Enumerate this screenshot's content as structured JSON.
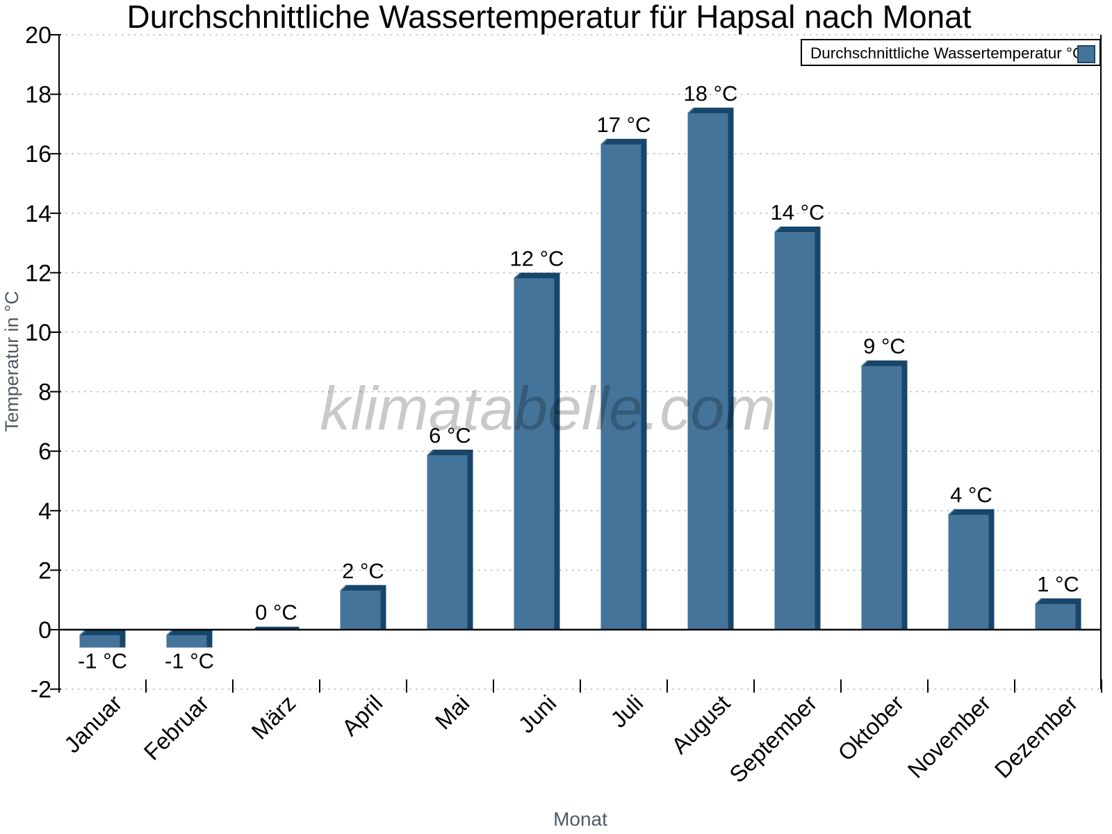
{
  "page": {
    "background": "#ffffff"
  },
  "watermark": {
    "text": "klimatabelle.com",
    "color": "#000000",
    "opacity": 0.21
  },
  "chart_data": {
    "type": "bar",
    "title": "Durchschnittliche Wassertemperatur für Hapsal nach Monat",
    "xlabel": "Monat",
    "ylabel": "Temperatur in °C",
    "categories": [
      "Januar",
      "Februar",
      "März",
      "April",
      "Mai",
      "Juni",
      "Juli",
      "August",
      "September",
      "Oktober",
      "November",
      "Dezember"
    ],
    "values": [
      -1,
      -1,
      0,
      2,
      6,
      12,
      17,
      18,
      14,
      9,
      4,
      1
    ],
    "value_labels": [
      "-1 °C",
      "-1 °C",
      "0 °C",
      "2 °C",
      "6 °C",
      "12 °C",
      "17 °C",
      "18 °C",
      "14 °C",
      "9 °C",
      "4 °C",
      "1 °C"
    ],
    "bar_values_plotted": [
      -0.6,
      -0.6,
      0.1,
      1.5,
      6.05,
      12.0,
      16.5,
      17.55,
      13.55,
      9.05,
      4.05,
      1.05
    ],
    "ylim": [
      -2,
      20
    ],
    "ytick_step": 2,
    "ytick_labels": [
      "20",
      "18",
      "16",
      "14",
      "12",
      "10",
      "8",
      "6",
      "4",
      "2",
      "0",
      "-2"
    ],
    "grid": "horizontal dotted",
    "legend": {
      "label": "Durchschnittliche Wassertemperatur °C",
      "position": "top-right"
    },
    "colors": {
      "bar_face": "#44749A",
      "bar_edge_dark": "#17466A",
      "grid_line": "#b8b8b8",
      "axis_line": "#000000",
      "tick_text": "#000000",
      "axis_title_text": "#4e5a66",
      "legend_border": "#000000",
      "legend_background": "#ffffff"
    }
  }
}
